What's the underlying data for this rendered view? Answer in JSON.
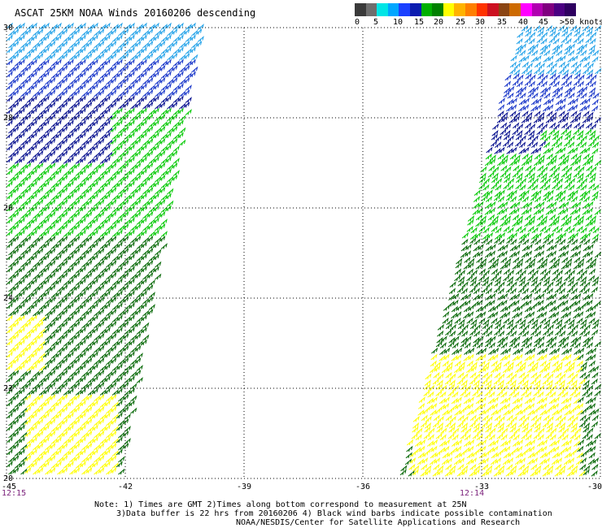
{
  "title": "ASCAT 25KM NOAA Winds 20160206 descending",
  "legend": {
    "colors": [
      "#3a3a3a",
      "#6e6e6e",
      "#00e5e5",
      "#00a6ff",
      "#1b40ff",
      "#0a1cb0",
      "#00b000",
      "#008000",
      "#ffff00",
      "#ffb300",
      "#ff7f00",
      "#ff3300",
      "#cc1020",
      "#8b4513",
      "#cd6a00",
      "#ff00ff",
      "#b000b0",
      "#800080",
      "#4b0082",
      "#2e0060"
    ],
    "ticks": [
      "0",
      "5",
      "10",
      "15",
      "20",
      "25",
      "30",
      "35",
      "40",
      "45",
      ">50 knots"
    ]
  },
  "map": {
    "lat_ticks": [
      "30",
      "28",
      "26",
      "24",
      "22",
      "20"
    ],
    "lon_ticks": [
      "-45",
      "-42",
      "-39",
      "-36",
      "-33",
      "-30"
    ],
    "lat_range": [
      20,
      30
    ],
    "lon_range": [
      -45,
      -30
    ],
    "pass_times": [
      "12:15",
      "12:14"
    ],
    "barb_colors": {
      "blue_light": "#1ea0e8",
      "blue": "#1432c8",
      "navy": "#000a8c",
      "green": "#00c800",
      "green_dark": "#006400",
      "yellow": "#ffff00"
    }
  },
  "notes": {
    "line1": "Note: 1) Times are GMT 2)Times along bottom correspond to measurement at 25N",
    "line2": "3)Data buffer is 22 hrs from 20160206 4) Black wind barbs indicate possible contamination",
    "line3": "NOAA/NESDIS/Center for Satellite Applications and Research"
  }
}
